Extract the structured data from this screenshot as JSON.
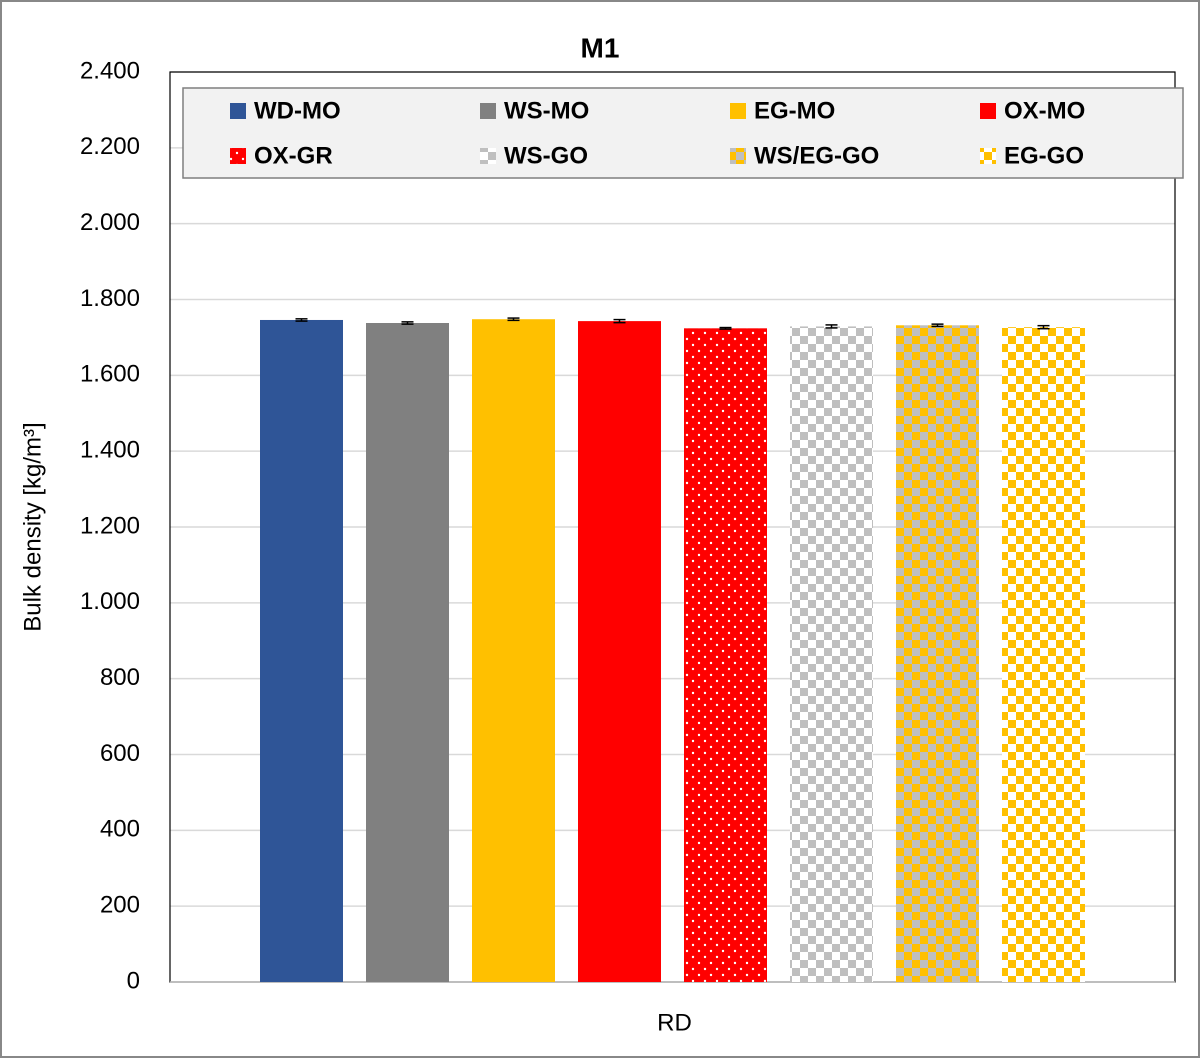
{
  "chart_data": {
    "type": "bar",
    "title": "M1",
    "y_label": "Bulk density [kg/m³]",
    "categories": [
      "RD"
    ],
    "series": [
      {
        "name": "WD-MO",
        "color": "#2f5597",
        "pattern": "solid",
        "values": [
          1746
        ],
        "errors": [
          3
        ]
      },
      {
        "name": "WS-MO",
        "color": "#808080",
        "pattern": "solid",
        "values": [
          1738
        ],
        "errors": [
          3
        ]
      },
      {
        "name": "EG-MO",
        "color": "#ffc000",
        "pattern": "solid",
        "values": [
          1748
        ],
        "errors": [
          3
        ]
      },
      {
        "name": "OX-MO",
        "color": "#ff0000",
        "pattern": "solid",
        "values": [
          1743
        ],
        "errors": [
          4
        ]
      },
      {
        "name": "OX-GR",
        "color": "#ff0000",
        "color2": "#ffffff",
        "pattern": "dots",
        "values": [
          1724
        ],
        "errors": [
          2
        ]
      },
      {
        "name": "WS-GO",
        "color": "#bfbfbf",
        "color2": "#ffffff",
        "pattern": "checker",
        "values": [
          1729
        ],
        "errors": [
          4
        ]
      },
      {
        "name": "WS/EG-GO",
        "color": "#ffc000",
        "color2": "#bfbfbf",
        "pattern": "checker",
        "values": [
          1732
        ],
        "errors": [
          3
        ]
      },
      {
        "name": "EG-GO",
        "color": "#ffc000",
        "color2": "#ffffff",
        "pattern": "checker",
        "values": [
          1727
        ],
        "errors": [
          4
        ]
      }
    ],
    "ylim": [
      0,
      2400
    ],
    "yticks": [
      0,
      200,
      400,
      600,
      800,
      {
        "value": 1000,
        "label": "1.000"
      },
      {
        "value": 1200,
        "label": "1.200"
      },
      {
        "value": 1400,
        "label": "1.400"
      },
      {
        "value": 1600,
        "label": "1.600"
      },
      {
        "value": 1800,
        "label": "1.800"
      },
      {
        "value": 2000,
        "label": "2.000"
      },
      {
        "value": 2200,
        "label": "2.200"
      },
      {
        "value": 2400,
        "label": "2.400"
      }
    ],
    "grid": true,
    "legend": "top"
  }
}
